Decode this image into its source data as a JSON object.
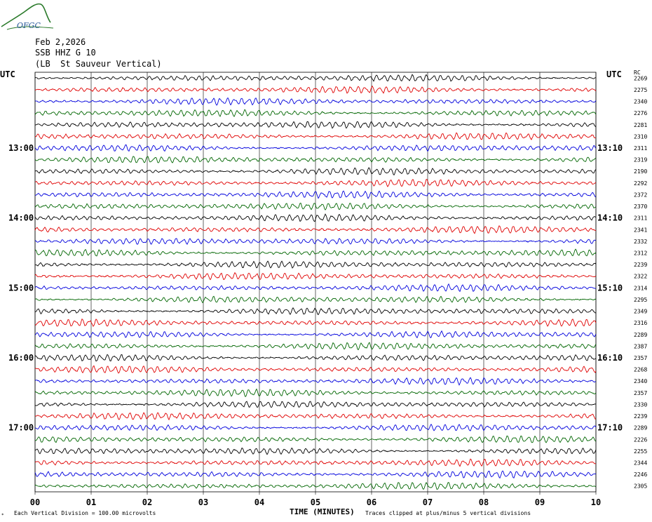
{
  "logo_text": "OFGC",
  "header": {
    "date": "Feb 2,2026",
    "channel": "SSB HHZ G 10",
    "site": "(LB  St Sauveur Vertical)"
  },
  "colors": {
    "trace_cycle": [
      "#000000",
      "#e00000",
      "#0000dd",
      "#006600"
    ],
    "grid": "#000000",
    "logo": "#2a7a2a"
  },
  "chart_data": {
    "type": "line",
    "title": "",
    "xlabel": "TIME (MINUTES)",
    "left_axis_label": "UTC",
    "right_axis_label": "UTC",
    "right_column_header": "RC",
    "x_ticks": [
      "00",
      "01",
      "02",
      "03",
      "04",
      "05",
      "06",
      "07",
      "08",
      "09",
      "10"
    ],
    "xlim": [
      0,
      10
    ],
    "left_hour_labels": [
      {
        "row": 6,
        "label": "13:00"
      },
      {
        "row": 12,
        "label": "14:00"
      },
      {
        "row": 18,
        "label": "15:00"
      },
      {
        "row": 24,
        "label": "16:00"
      },
      {
        "row": 30,
        "label": "17:00"
      }
    ],
    "right_hour_labels": [
      {
        "row": 6,
        "label": "13:10"
      },
      {
        "row": 12,
        "label": "14:10"
      },
      {
        "row": 18,
        "label": "15:10"
      },
      {
        "row": 24,
        "label": "16:10"
      },
      {
        "row": 30,
        "label": "17:10"
      }
    ],
    "trace_counts": [
      2269,
      2275,
      2340,
      2276,
      2281,
      2310,
      2311,
      2319,
      2190,
      2292,
      2372,
      2370,
      2311,
      2341,
      2332,
      2312,
      2239,
      2322,
      2314,
      2295,
      2349,
      2316,
      2289,
      2387,
      2357,
      2268,
      2340,
      2357,
      2330,
      2239,
      2289,
      2226,
      2255,
      2344,
      2246,
      2305
    ],
    "footer_left": "Each Vertical Division =  100.00 microvolts",
    "footer_right": "Traces clipped at plus/minus 5 vertical divisions",
    "grid": true
  }
}
